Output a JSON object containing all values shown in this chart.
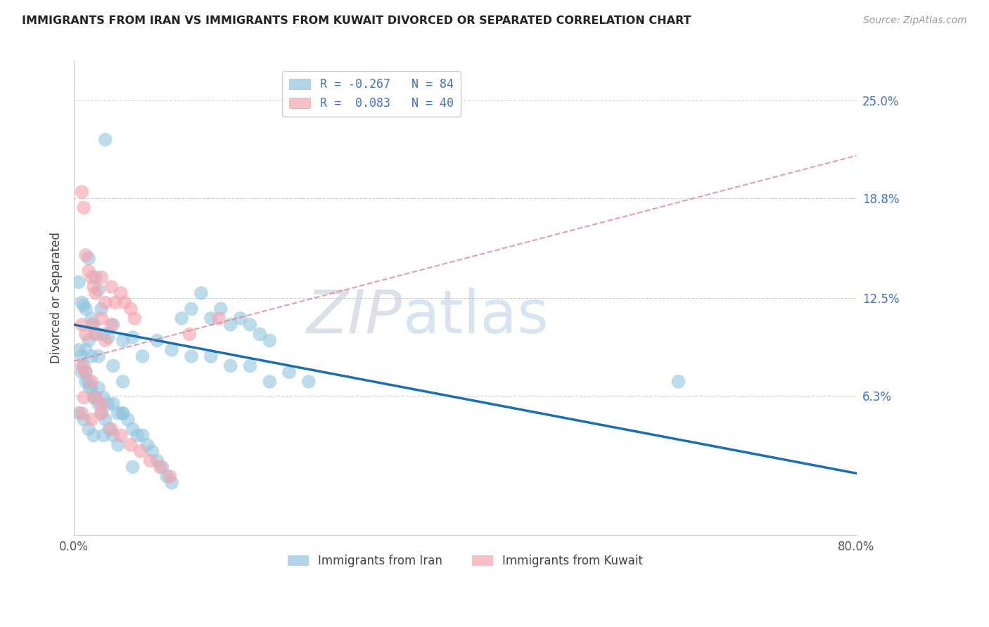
{
  "title": "IMMIGRANTS FROM IRAN VS IMMIGRANTS FROM KUWAIT DIVORCED OR SEPARATED CORRELATION CHART",
  "source": "Source: ZipAtlas.com",
  "ylabel": "Divorced or Separated",
  "ytick_labels": [
    "25.0%",
    "18.8%",
    "12.5%",
    "6.3%"
  ],
  "ytick_values": [
    0.25,
    0.188,
    0.125,
    0.063
  ],
  "xlim": [
    0.0,
    0.8
  ],
  "ylim": [
    -0.025,
    0.275
  ],
  "iran_color": "#92c5de",
  "kuwait_color": "#f4a6b0",
  "iran_trend_color": "#1a6faf",
  "kuwait_trend_color": "#d88090",
  "iran_trend_x0": 0.0,
  "iran_trend_y0": 0.108,
  "iran_trend_x1": 0.8,
  "iran_trend_y1": 0.014,
  "kuwait_trend_x0": 0.0,
  "kuwait_trend_y0": 0.085,
  "kuwait_trend_x1": 0.8,
  "kuwait_trend_y1": 0.215,
  "watermark_zip": "ZIP",
  "watermark_atlas": "atlas",
  "iran_scatter_x": [
    0.032,
    0.005,
    0.01,
    0.012,
    0.018,
    0.02,
    0.025,
    0.015,
    0.008,
    0.022,
    0.03,
    0.035,
    0.04,
    0.028,
    0.015,
    0.012,
    0.018,
    0.022,
    0.05,
    0.06,
    0.07,
    0.085,
    0.1,
    0.12,
    0.14,
    0.16,
    0.18,
    0.2,
    0.22,
    0.24,
    0.008,
    0.012,
    0.016,
    0.02,
    0.025,
    0.03,
    0.035,
    0.04,
    0.045,
    0.05,
    0.055,
    0.06,
    0.065,
    0.07,
    0.075,
    0.08,
    0.085,
    0.09,
    0.095,
    0.1,
    0.11,
    0.12,
    0.13,
    0.14,
    0.15,
    0.16,
    0.17,
    0.18,
    0.19,
    0.2,
    0.005,
    0.008,
    0.01,
    0.012,
    0.015,
    0.018,
    0.022,
    0.025,
    0.028,
    0.032,
    0.036,
    0.04,
    0.045,
    0.05,
    0.618,
    0.005,
    0.01,
    0.015,
    0.02,
    0.025,
    0.03,
    0.04,
    0.05,
    0.06
  ],
  "iran_scatter_y": [
    0.225,
    0.135,
    0.12,
    0.118,
    0.112,
    0.108,
    0.13,
    0.15,
    0.122,
    0.138,
    0.102,
    0.1,
    0.108,
    0.118,
    0.098,
    0.092,
    0.088,
    0.102,
    0.098,
    0.1,
    0.088,
    0.098,
    0.092,
    0.088,
    0.088,
    0.082,
    0.082,
    0.072,
    0.078,
    0.072,
    0.078,
    0.072,
    0.068,
    0.062,
    0.068,
    0.062,
    0.058,
    0.058,
    0.052,
    0.052,
    0.048,
    0.042,
    0.038,
    0.038,
    0.032,
    0.028,
    0.022,
    0.018,
    0.012,
    0.008,
    0.112,
    0.118,
    0.128,
    0.112,
    0.118,
    0.108,
    0.112,
    0.108,
    0.102,
    0.098,
    0.092,
    0.088,
    0.082,
    0.078,
    0.072,
    0.068,
    0.062,
    0.058,
    0.052,
    0.048,
    0.042,
    0.038,
    0.032,
    0.072,
    0.072,
    0.052,
    0.048,
    0.042,
    0.038,
    0.088,
    0.038,
    0.082,
    0.052,
    0.018
  ],
  "kuwait_scatter_x": [
    0.008,
    0.01,
    0.012,
    0.015,
    0.018,
    0.02,
    0.022,
    0.028,
    0.032,
    0.038,
    0.042,
    0.048,
    0.052,
    0.058,
    0.062,
    0.008,
    0.012,
    0.018,
    0.022,
    0.028,
    0.032,
    0.038,
    0.008,
    0.012,
    0.018,
    0.022,
    0.028,
    0.118,
    0.148,
    0.008,
    0.018,
    0.028,
    0.038,
    0.048,
    0.058,
    0.068,
    0.078,
    0.088,
    0.098,
    0.01
  ],
  "kuwait_scatter_y": [
    0.192,
    0.182,
    0.152,
    0.142,
    0.138,
    0.132,
    0.128,
    0.138,
    0.122,
    0.132,
    0.122,
    0.128,
    0.122,
    0.118,
    0.112,
    0.108,
    0.102,
    0.108,
    0.102,
    0.112,
    0.098,
    0.108,
    0.082,
    0.078,
    0.072,
    0.062,
    0.058,
    0.102,
    0.112,
    0.052,
    0.048,
    0.052,
    0.042,
    0.038,
    0.032,
    0.028,
    0.022,
    0.018,
    0.012,
    0.062
  ]
}
